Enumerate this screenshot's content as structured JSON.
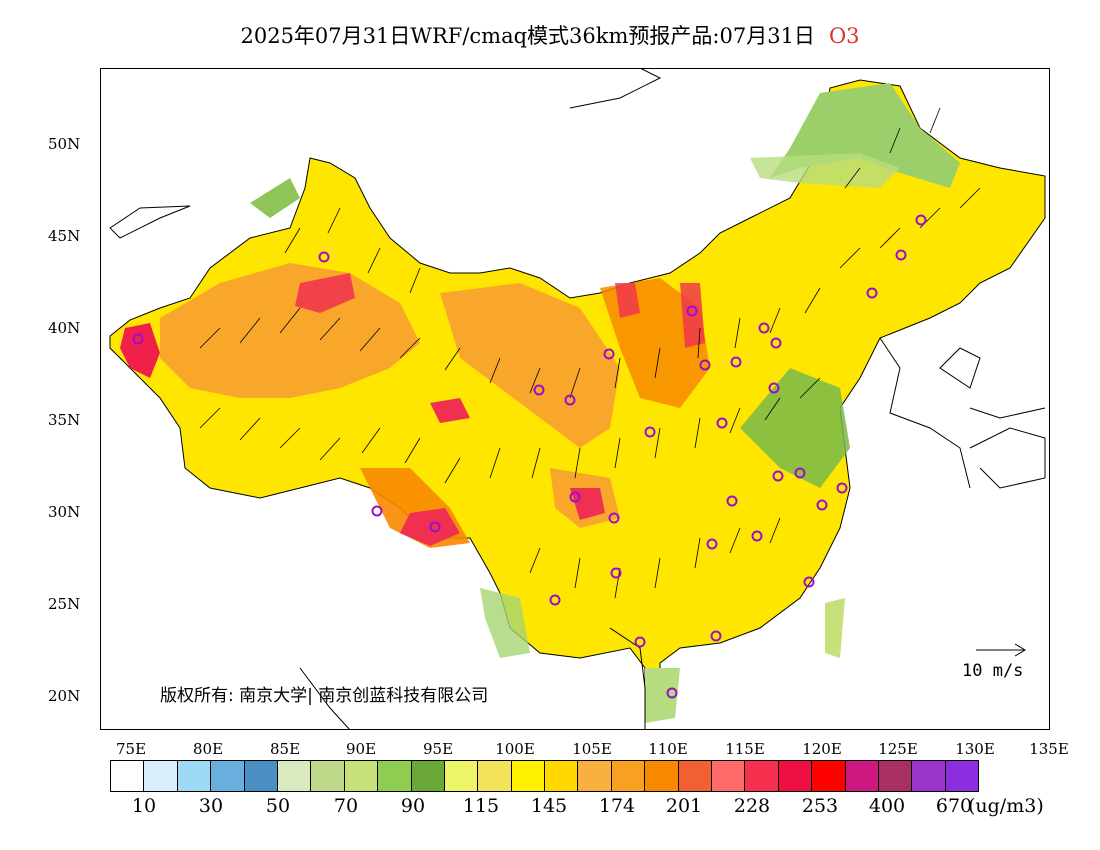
{
  "title": {
    "main": "2025年07月31日WRF/cmaq模式36km预报产品:07月31日",
    "pollutant": "O3"
  },
  "map": {
    "lat_labels": [
      "50N",
      "45N",
      "40N",
      "35N",
      "30N",
      "25N",
      "20N"
    ],
    "lon_labels": [
      "75E",
      "80E",
      "85E",
      "90E",
      "95E",
      "100E",
      "105E",
      "110E",
      "115E",
      "120E",
      "125E",
      "130E",
      "135E"
    ],
    "copyright": "版权所有: 南京大学| 南京创蓝科技有限公司",
    "vector_scale_label": "10  m/s"
  },
  "colorbar": {
    "colors": [
      "#ffffff",
      "#d6effa",
      "#9ed9f5",
      "#6aaedd",
      "#4a8ec4",
      "#dbe9c0",
      "#bfd98a",
      "#c8e07a",
      "#8fcc52",
      "#6aa83a",
      "#eef56a",
      "#f3e25a",
      "#fff200",
      "#ffd800",
      "#f8b040",
      "#f8a020",
      "#f88800",
      "#f06030",
      "#ff6a6a",
      "#f83050",
      "#ee1040",
      "#ff0000",
      "#cc1880",
      "#a83060",
      "#9a36cc",
      "#8a2ee0"
    ],
    "labels": [
      "10",
      "30",
      "50",
      "70",
      "90",
      "115",
      "145",
      "174",
      "201",
      "228",
      "253",
      "400",
      "670"
    ],
    "unit": "(ug/m3)"
  },
  "palette": {
    "ocean": "#ffffff",
    "border": "#000000",
    "site_marker": "#9a10c8"
  }
}
